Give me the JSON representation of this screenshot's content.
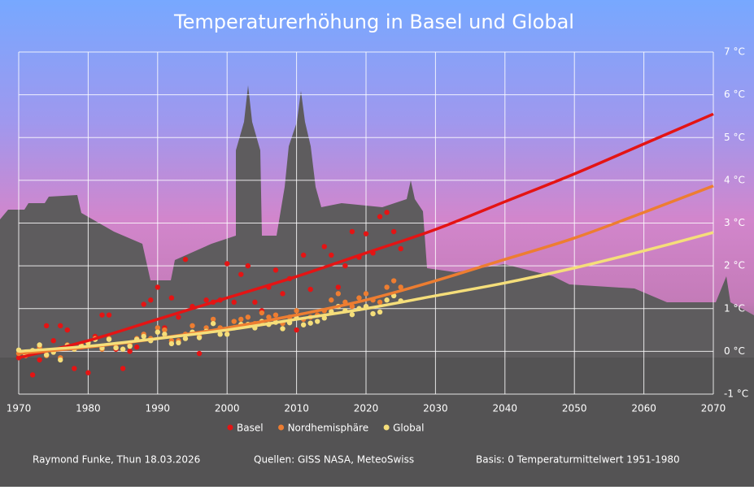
{
  "chart_data": {
    "type": "scatter",
    "title": "Temperaturerhöhung in Basel und Global",
    "x": [
      1970,
      1971,
      1972,
      1973,
      1974,
      1975,
      1976,
      1977,
      1978,
      1979,
      1980,
      1981,
      1982,
      1983,
      1984,
      1985,
      1986,
      1987,
      1988,
      1989,
      1990,
      1991,
      1992,
      1993,
      1994,
      1995,
      1996,
      1997,
      1998,
      1999,
      2000,
      2001,
      2002,
      2003,
      2004,
      2005,
      2006,
      2007,
      2008,
      2009,
      2010,
      2011,
      2012,
      2013,
      2014,
      2015,
      2016,
      2017,
      2018,
      2019,
      2020,
      2021,
      2022,
      2023,
      2024,
      2025
    ],
    "trend_x": [
      1970,
      1980,
      1990,
      2000,
      2010,
      2020,
      2030,
      2040,
      2050,
      2060,
      2070
    ],
    "series": [
      {
        "name": "Basel",
        "color": "#e41414",
        "values": [
          -0.15,
          -0.1,
          -0.55,
          -0.2,
          0.6,
          0.25,
          0.6,
          0.5,
          -0.4,
          0.1,
          -0.5,
          0.35,
          0.85,
          0.85,
          0.05,
          -0.4,
          0.0,
          0.1,
          1.1,
          1.2,
          1.5,
          0.55,
          1.25,
          0.8,
          2.15,
          1.05,
          -0.05,
          1.2,
          1.15,
          1.2,
          2.05,
          1.15,
          1.8,
          2.0,
          1.15,
          0.95,
          1.5,
          1.9,
          1.35,
          1.7,
          0.5,
          2.25,
          1.45,
          0.85,
          2.45,
          2.25,
          1.5,
          2.0,
          2.8,
          2.2,
          2.75,
          2.3,
          3.15,
          3.25,
          2.8,
          2.4
        ],
        "trend": [
          -0.15,
          0.25,
          0.75,
          1.25,
          1.75,
          2.3,
          2.85,
          3.5,
          4.15,
          4.85,
          5.55
        ]
      },
      {
        "name": "Nordhemisphäre",
        "color": "#ed7d31",
        "values": [
          -0.05,
          -0.1,
          0.0,
          0.1,
          -0.1,
          0.0,
          -0.15,
          0.15,
          0.05,
          0.15,
          0.2,
          0.3,
          0.05,
          0.3,
          0.1,
          0.05,
          0.15,
          0.3,
          0.4,
          0.3,
          0.55,
          0.5,
          0.25,
          0.25,
          0.4,
          0.6,
          0.35,
          0.55,
          0.75,
          0.55,
          0.5,
          0.7,
          0.75,
          0.8,
          0.65,
          0.9,
          0.8,
          0.85,
          0.65,
          0.8,
          0.95,
          0.75,
          0.8,
          0.85,
          0.95,
          1.2,
          1.35,
          1.15,
          1.05,
          1.25,
          1.35,
          1.2,
          1.15,
          1.5,
          1.65,
          1.5
        ],
        "trend": [
          -0.05,
          0.1,
          0.3,
          0.55,
          0.85,
          1.2,
          1.65,
          2.15,
          2.65,
          3.25,
          3.87
        ]
      },
      {
        "name": "Global",
        "color": "#f5de7a",
        "values": [
          0.03,
          -0.08,
          0.02,
          0.15,
          -0.08,
          -0.02,
          -0.2,
          0.13,
          0.05,
          0.12,
          0.2,
          0.28,
          0.08,
          0.28,
          0.08,
          0.05,
          0.12,
          0.28,
          0.35,
          0.25,
          0.45,
          0.4,
          0.18,
          0.2,
          0.3,
          0.45,
          0.32,
          0.47,
          0.65,
          0.4,
          0.4,
          0.55,
          0.63,
          0.63,
          0.55,
          0.7,
          0.63,
          0.68,
          0.53,
          0.67,
          0.78,
          0.62,
          0.66,
          0.7,
          0.78,
          0.93,
          1.05,
          0.95,
          0.86,
          1.0,
          1.05,
          0.88,
          0.92,
          1.2,
          1.3,
          1.18
        ],
        "trend": [
          0.0,
          0.12,
          0.3,
          0.5,
          0.75,
          1.0,
          1.3,
          1.6,
          1.95,
          2.35,
          2.78
        ]
      }
    ],
    "xlim": [
      1970,
      2070
    ],
    "xticks": [
      1970,
      1980,
      1990,
      2000,
      2010,
      2020,
      2030,
      2040,
      2050,
      2060,
      2070
    ],
    "ylim": [
      -1,
      7
    ],
    "yticks": [
      {
        "value": -1,
        "label": "-1 °C"
      },
      {
        "value": 0,
        "label": "0 °C"
      },
      {
        "value": 1,
        "label": "1 °C"
      },
      {
        "value": 2,
        "label": "2 °C"
      },
      {
        "value": 3,
        "label": "3 °C"
      },
      {
        "value": 4,
        "label": "4 °C"
      },
      {
        "value": 5,
        "label": "5 °C"
      },
      {
        "value": 6,
        "label": "6 °C"
      },
      {
        "value": 7,
        "label": "7 °C"
      }
    ],
    "grid": true,
    "legend": "bottom",
    "footer": [
      "Raymond Funke, Thun 18.03.2026",
      "Quellen: GISS NASA, MeteoSwiss",
      "Basis: 0 Temperaturmittelwert 1951-1980"
    ]
  }
}
